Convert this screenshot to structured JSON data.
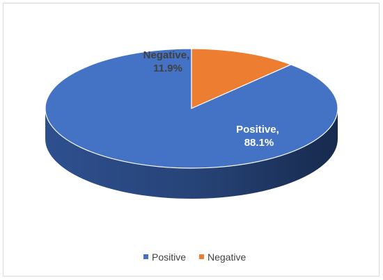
{
  "chart_data": {
    "type": "pie",
    "style": "3d",
    "title": "",
    "slices": [
      {
        "name": "Positive",
        "value": 88.1,
        "label_name": "Positive,",
        "label_value": "88.1%",
        "color": "#4472C4",
        "side_color": "#1F3866"
      },
      {
        "name": "Negative",
        "value": 11.9,
        "label_name": "Negative,",
        "label_value": "11.9%",
        "color": "#ED7D31",
        "side_color": "#8B4513"
      }
    ],
    "legend": {
      "position": "bottom",
      "entries": [
        "Positive",
        "Negative"
      ]
    }
  }
}
